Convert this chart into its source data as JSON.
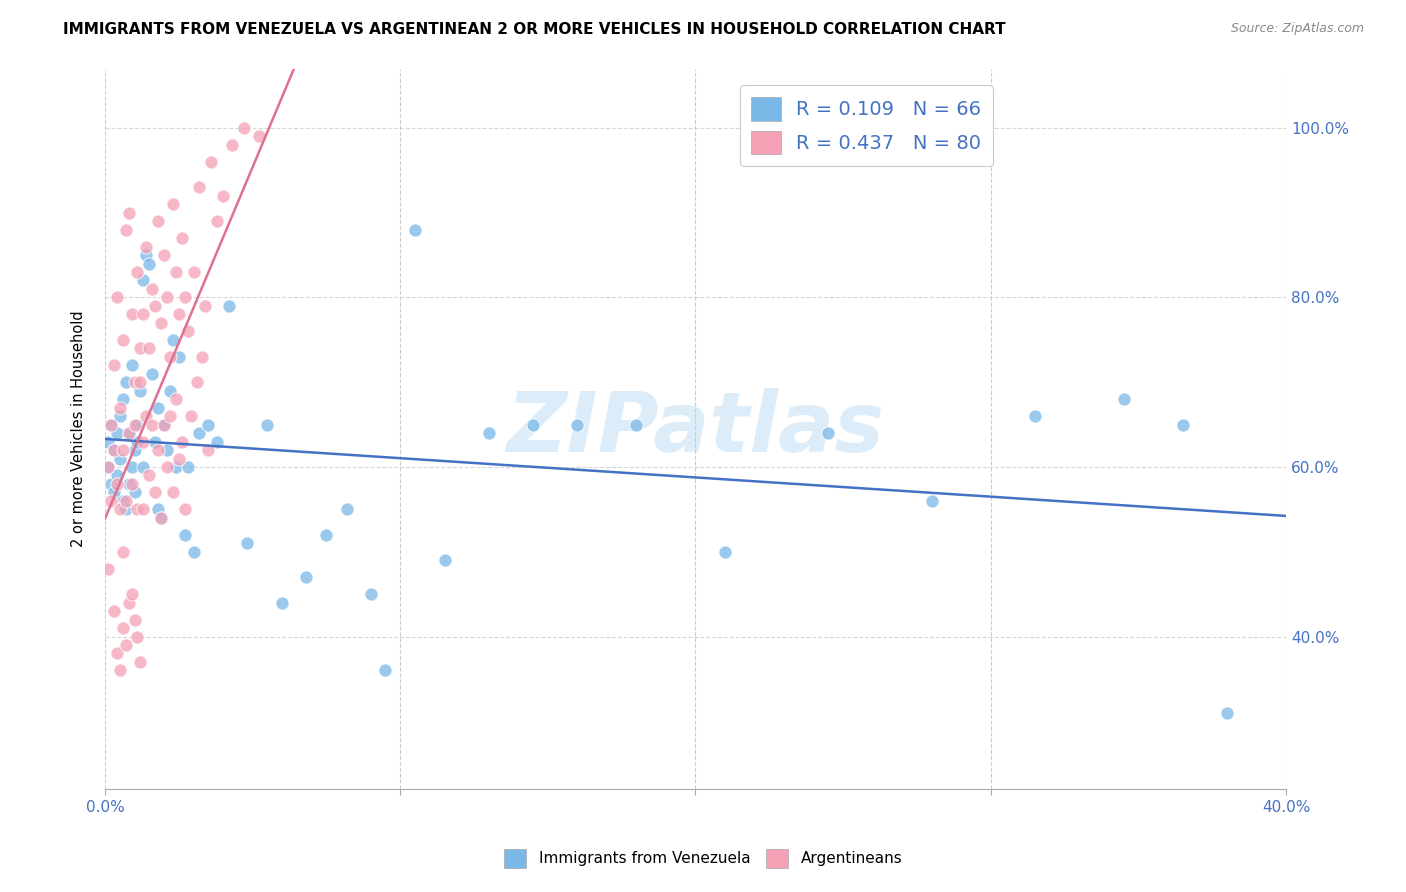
{
  "title": "IMMIGRANTS FROM VENEZUELA VS ARGENTINEAN 2 OR MORE VEHICLES IN HOUSEHOLD CORRELATION CHART",
  "source": "Source: ZipAtlas.com",
  "ylabel": "2 or more Vehicles in Household",
  "xlim": [
    0.0,
    0.4
  ],
  "ylim": [
    0.22,
    1.07
  ],
  "ytick_positions": [
    0.4,
    0.6,
    0.8,
    1.0
  ],
  "yticklabels": [
    "40.0%",
    "60.0%",
    "80.0%",
    "100.0%"
  ],
  "legend_label1": "Immigrants from Venezuela",
  "legend_label2": "Argentineans",
  "color_blue": "#7ab8e8",
  "color_pink": "#f4a0b5",
  "watermark": "ZIPatlas",
  "blue_r": 0.109,
  "blue_n": 66,
  "pink_r": 0.437,
  "pink_n": 80,
  "blue_scatter_x": [
    0.001,
    0.001,
    0.002,
    0.002,
    0.003,
    0.003,
    0.004,
    0.004,
    0.005,
    0.005,
    0.006,
    0.006,
    0.007,
    0.007,
    0.008,
    0.008,
    0.009,
    0.009,
    0.01,
    0.01,
    0.011,
    0.011,
    0.012,
    0.013,
    0.013,
    0.014,
    0.015,
    0.016,
    0.017,
    0.018,
    0.018,
    0.019,
    0.02,
    0.021,
    0.022,
    0.023,
    0.024,
    0.025,
    0.027,
    0.028,
    0.03,
    0.032,
    0.035,
    0.038,
    0.042,
    0.048,
    0.055,
    0.06,
    0.068,
    0.075,
    0.082,
    0.09,
    0.095,
    0.105,
    0.115,
    0.13,
    0.145,
    0.16,
    0.18,
    0.21,
    0.245,
    0.28,
    0.315,
    0.345,
    0.365,
    0.38
  ],
  "blue_scatter_y": [
    0.6,
    0.63,
    0.58,
    0.65,
    0.57,
    0.62,
    0.64,
    0.59,
    0.61,
    0.66,
    0.56,
    0.68,
    0.55,
    0.7,
    0.64,
    0.58,
    0.72,
    0.6,
    0.62,
    0.57,
    0.65,
    0.63,
    0.69,
    0.6,
    0.82,
    0.85,
    0.84,
    0.71,
    0.63,
    0.67,
    0.55,
    0.54,
    0.65,
    0.62,
    0.69,
    0.75,
    0.6,
    0.73,
    0.52,
    0.6,
    0.5,
    0.64,
    0.65,
    0.63,
    0.79,
    0.51,
    0.65,
    0.44,
    0.47,
    0.52,
    0.55,
    0.45,
    0.36,
    0.88,
    0.49,
    0.64,
    0.65,
    0.65,
    0.65,
    0.5,
    0.64,
    0.56,
    0.66,
    0.68,
    0.65,
    0.31
  ],
  "pink_scatter_x": [
    0.001,
    0.001,
    0.002,
    0.002,
    0.003,
    0.003,
    0.004,
    0.004,
    0.005,
    0.005,
    0.006,
    0.006,
    0.006,
    0.007,
    0.007,
    0.008,
    0.008,
    0.009,
    0.009,
    0.01,
    0.01,
    0.011,
    0.011,
    0.012,
    0.012,
    0.013,
    0.013,
    0.013,
    0.014,
    0.014,
    0.015,
    0.015,
    0.016,
    0.016,
    0.017,
    0.017,
    0.018,
    0.018,
    0.019,
    0.019,
    0.02,
    0.02,
    0.021,
    0.021,
    0.022,
    0.022,
    0.023,
    0.023,
    0.024,
    0.024,
    0.025,
    0.025,
    0.026,
    0.026,
    0.027,
    0.027,
    0.028,
    0.029,
    0.03,
    0.031,
    0.032,
    0.033,
    0.034,
    0.035,
    0.036,
    0.038,
    0.04,
    0.043,
    0.047,
    0.052,
    0.003,
    0.004,
    0.005,
    0.006,
    0.007,
    0.008,
    0.009,
    0.01,
    0.011,
    0.012
  ],
  "pink_scatter_y": [
    0.6,
    0.48,
    0.65,
    0.56,
    0.72,
    0.62,
    0.8,
    0.58,
    0.67,
    0.55,
    0.75,
    0.62,
    0.5,
    0.88,
    0.56,
    0.9,
    0.64,
    0.78,
    0.58,
    0.7,
    0.65,
    0.83,
    0.55,
    0.7,
    0.74,
    0.78,
    0.63,
    0.55,
    0.86,
    0.66,
    0.74,
    0.59,
    0.81,
    0.65,
    0.79,
    0.57,
    0.89,
    0.62,
    0.77,
    0.54,
    0.85,
    0.65,
    0.8,
    0.6,
    0.73,
    0.66,
    0.91,
    0.57,
    0.83,
    0.68,
    0.78,
    0.61,
    0.87,
    0.63,
    0.8,
    0.55,
    0.76,
    0.66,
    0.83,
    0.7,
    0.93,
    0.73,
    0.79,
    0.62,
    0.96,
    0.89,
    0.92,
    0.98,
    1.0,
    0.99,
    0.43,
    0.38,
    0.36,
    0.41,
    0.39,
    0.44,
    0.45,
    0.42,
    0.4,
    0.37
  ]
}
